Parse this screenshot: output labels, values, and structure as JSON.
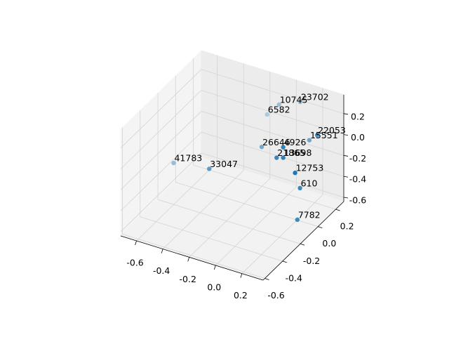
{
  "chart_data": {
    "type": "scatter3d",
    "color": "#1f77b4",
    "x": [
      0.09,
      -0.01,
      -0.1,
      0.34,
      0.22,
      0.21,
      -0.02,
      0.16,
      0.21,
      -0.5,
      -0.23,
      0.3,
      0.27,
      0.25
    ],
    "y": [
      0.2,
      0.11,
      0.11,
      0.02,
      0.11,
      -0.17,
      -0.07,
      -0.17,
      -0.17,
      -0.35,
      -0.35,
      -0.17,
      -0.07,
      -0.07
    ],
    "z": [
      0.28,
      0.29,
      0.16,
      0.21,
      0.04,
      0.2,
      0.03,
      0.08,
      0.1,
      -0.08,
      -0.03,
      -0.01,
      -0.25,
      -0.56
    ],
    "point_labels": [
      "23702",
      "10745",
      "6582",
      "22053",
      "15551",
      "4926",
      "26646",
      "21865",
      "13698",
      "41783",
      "33047",
      "12753",
      "610",
      "7782"
    ],
    "xlim": [
      -0.72,
      0.36
    ],
    "ylim": [
      -0.62,
      0.29
    ],
    "zlim": [
      -0.64,
      0.38
    ],
    "xticks": [
      -0.6,
      -0.4,
      -0.2,
      0.0,
      0.2
    ],
    "yticks": [
      -0.6,
      -0.4,
      -0.2,
      0.0,
      0.2
    ],
    "zticks": [
      -0.6,
      -0.4,
      -0.2,
      0.0,
      0.2
    ],
    "grid": true
  }
}
